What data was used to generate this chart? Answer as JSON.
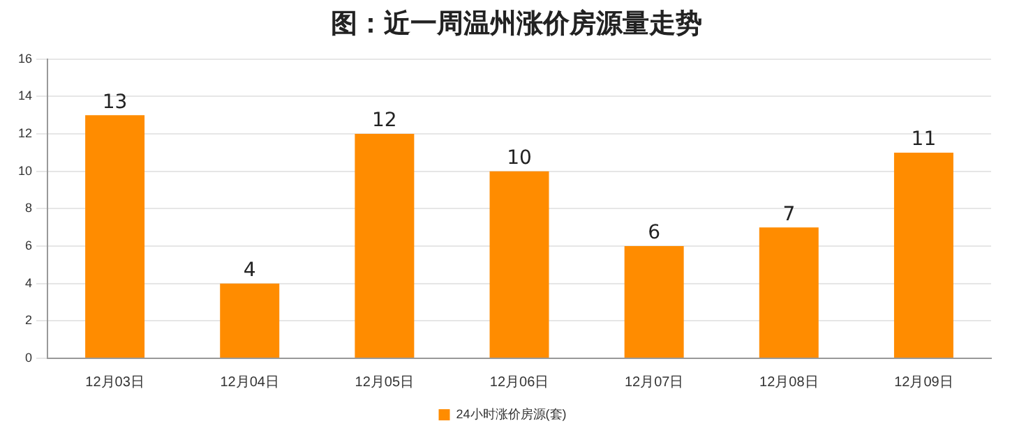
{
  "chart_data": {
    "type": "bar",
    "title": "图：近一周温州涨价房源量走势",
    "categories": [
      "12月03日",
      "12月04日",
      "12月05日",
      "12月06日",
      "12月07日",
      "12月08日",
      "12月09日"
    ],
    "series": [
      {
        "name": "24小时涨价房源(套)",
        "color": "#ff8c00",
        "values": [
          13,
          4,
          12,
          10,
          6,
          7,
          11
        ]
      }
    ],
    "ylim": [
      0,
      16
    ],
    "yticks": [
      0,
      2,
      4,
      6,
      8,
      10,
      12,
      14,
      16
    ],
    "grid": "y",
    "legend": "bottom",
    "data_labels": true
  }
}
